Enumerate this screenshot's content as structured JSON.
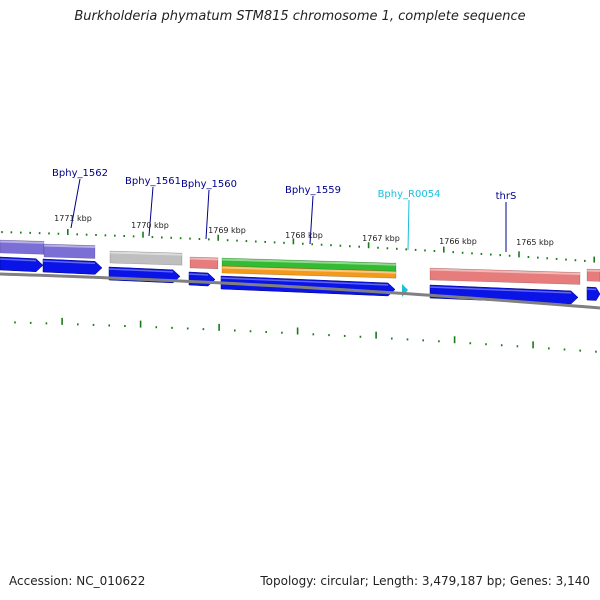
{
  "title": "Burkholderia phymatum STM815 chromosome 1, complete sequence",
  "footer": {
    "accession": "Accession: NC_010622",
    "summary": "Topology: circular; Length: 3,479,187 bp; Genes: 3,140"
  },
  "colors": {
    "backbone": "#808080",
    "cds_arrow": "#0a14e6",
    "gene_label": "#00008b",
    "ncrna_label": "#19bfdc",
    "tick": "#1a7a1a",
    "feature_purple": "#7b6fd6",
    "feature_gray": "#bfbfbf",
    "feature_red": "#e77c7c",
    "feature_green": "#33bb33",
    "feature_orange": "#f39a1a"
  },
  "gene_labels": [
    {
      "text": "Bphy_1562",
      "type": "gene"
    },
    {
      "text": "Bphy_1561",
      "type": "gene"
    },
    {
      "text": "Bphy_1560",
      "type": "gene"
    },
    {
      "text": "Bphy_1559",
      "type": "gene"
    },
    {
      "text": "Bphy_R0054",
      "type": "ncRNA"
    },
    {
      "text": "thrS",
      "type": "gene"
    }
  ],
  "scale_labels": [
    "1771 kbp",
    "1770 kbp",
    "1769 kbp",
    "1768 kbp",
    "1767 kbp",
    "1766 kbp",
    "1765 kbp"
  ],
  "feature_blocks": [
    {
      "color_key": "feature_purple",
      "strand": "+"
    },
    {
      "color_key": "feature_purple",
      "strand": "+"
    },
    {
      "color_key": "feature_gray",
      "strand": "+"
    },
    {
      "color_key": "feature_red",
      "strand": "+"
    },
    {
      "color_key": "feature_green",
      "strand": "+"
    },
    {
      "color_key": "feature_orange",
      "strand": "+"
    },
    {
      "color_key": "feature_red",
      "strand": "+"
    },
    {
      "color_key": "feature_red",
      "strand": "+"
    }
  ]
}
